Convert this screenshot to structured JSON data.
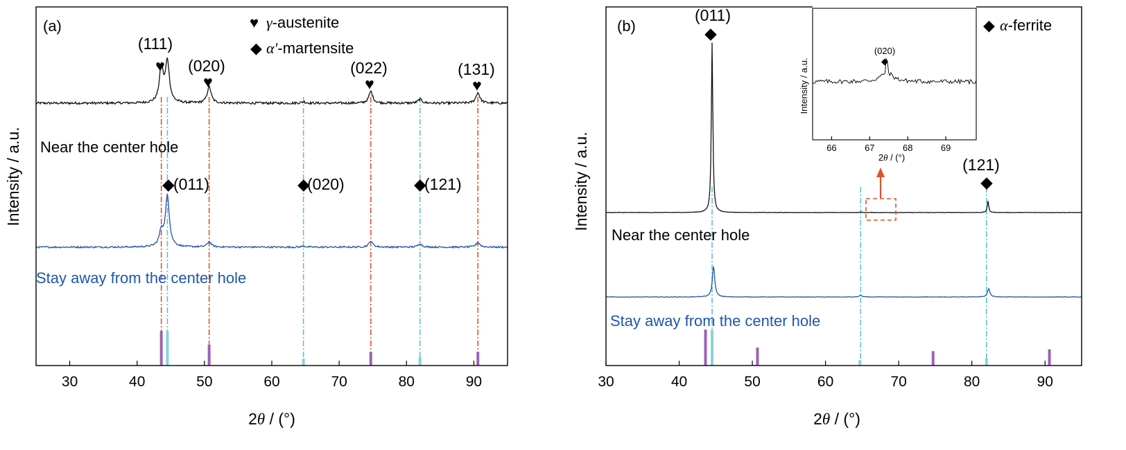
{
  "colors": {
    "trace_near": "#111111",
    "trace_away": "#1f56a8",
    "austenite_line": "#e0502a",
    "martensite_line": "#5cc0d0",
    "austenite_stick": "#9b63b8",
    "martensite_stick": "#86d4dc",
    "inset_box": "#e0502a",
    "sample_away_text": "#1f56a8",
    "sample_near_text": "#000000"
  },
  "icons": {
    "heart": "♥",
    "diamond": "◆"
  },
  "chart_data": [
    {
      "type": "line",
      "panel_label": "(a)",
      "xlabel": {
        "prefix": "2",
        "italic": "θ",
        "suffix": " / (°)"
      },
      "ylabel": "Intensity / a.u.",
      "xlim": [
        25,
        95
      ],
      "xticks": [
        30,
        40,
        50,
        60,
        70,
        80,
        90
      ],
      "legend": [
        {
          "symbol": "heart",
          "italic": "γ",
          "text": "-austenite"
        },
        {
          "symbol": "diamond",
          "italic": "α′",
          "text": "-martensite"
        }
      ],
      "series": [
        {
          "name": "Near the center hole",
          "color_key": "trace_near",
          "baseline": 0.0,
          "noise": 0.012,
          "peaks": [
            [
              43.6,
              0.36
            ],
            [
              44.5,
              0.42
            ],
            [
              50.7,
              0.17
            ],
            [
              64.7,
              0.015
            ],
            [
              74.7,
              0.12
            ],
            [
              82.0,
              0.04
            ],
            [
              90.6,
              0.11
            ]
          ]
        },
        {
          "name": "Stay away from the center hole",
          "color_key": "trace_away",
          "baseline": 0.0,
          "noise": 0.012,
          "peaks": [
            [
              43.6,
              0.22
            ],
            [
              44.5,
              0.75
            ],
            [
              50.7,
              0.08
            ],
            [
              64.7,
              0.015
            ],
            [
              74.7,
              0.09
            ],
            [
              82.0,
              0.05
            ],
            [
              90.6,
              0.07
            ]
          ]
        }
      ],
      "austenite_peaks": [
        {
          "x": 43.6,
          "label": "(111)"
        },
        {
          "x": 50.7,
          "label": "(020)"
        },
        {
          "x": 74.7,
          "label": "(022)"
        },
        {
          "x": 90.6,
          "label": "(131)"
        }
      ],
      "martensite_peaks": [
        {
          "x": 44.5,
          "label": "(011)"
        },
        {
          "x": 64.7,
          "label": "(020)"
        },
        {
          "x": 82.0,
          "label": "(121)"
        }
      ],
      "reference_sticks": [
        {
          "x": 43.6,
          "height": 1.0,
          "phase": "austenite"
        },
        {
          "x": 44.5,
          "height": 1.0,
          "phase": "martensite"
        },
        {
          "x": 50.7,
          "height": 0.6,
          "phase": "austenite"
        },
        {
          "x": 64.7,
          "height": 0.2,
          "phase": "martensite"
        },
        {
          "x": 74.7,
          "height": 0.4,
          "phase": "austenite"
        },
        {
          "x": 82.0,
          "height": 0.25,
          "phase": "martensite"
        },
        {
          "x": 90.6,
          "height": 0.4,
          "phase": "austenite"
        }
      ]
    },
    {
      "type": "line",
      "panel_label": "(b)",
      "xlabel": {
        "prefix": "2",
        "italic": "θ",
        "suffix": " / (°)"
      },
      "ylabel": "Intensity / a.u.",
      "xlim": [
        30,
        95
      ],
      "xticks": [
        30,
        40,
        50,
        60,
        70,
        80,
        90
      ],
      "legend": [
        {
          "symbol": "diamond",
          "italic": "α",
          "text": "-ferrite"
        }
      ],
      "series": [
        {
          "name": "Near the center hole",
          "color_key": "trace_near",
          "baseline": 0.0,
          "noise": 0.004,
          "peaks": [
            [
              44.5,
              3.0
            ],
            [
              64.8,
              0.01
            ],
            [
              82.2,
              0.2
            ]
          ]
        },
        {
          "name": "Stay away from the center hole",
          "color_key": "trace_away",
          "baseline": 0.0,
          "noise": 0.004,
          "peaks": [
            [
              44.7,
              0.5
            ],
            [
              64.8,
              0.03
            ],
            [
              82.3,
              0.14
            ]
          ]
        }
      ],
      "ferrite_peaks": [
        {
          "x": 44.5,
          "label": "(011)"
        },
        {
          "x": 82.2,
          "label": "(121)"
        }
      ],
      "guide_lines": [
        44.5,
        64.8,
        82.0
      ],
      "reference_sticks": [
        {
          "x": 43.6,
          "height": 1.0,
          "phase": "austenite"
        },
        {
          "x": 44.5,
          "height": 1.0,
          "phase": "martensite"
        },
        {
          "x": 50.7,
          "height": 0.5,
          "phase": "austenite"
        },
        {
          "x": 64.7,
          "height": 0.15,
          "phase": "martensite"
        },
        {
          "x": 74.7,
          "height": 0.4,
          "phase": "austenite"
        },
        {
          "x": 82.0,
          "height": 0.2,
          "phase": "martensite"
        },
        {
          "x": 90.6,
          "height": 0.45,
          "phase": "austenite"
        }
      ],
      "zoom_region": {
        "xlim": [
          66,
          69
        ]
      },
      "inset": {
        "type": "line",
        "xlabel": {
          "prefix": "2",
          "italic": "θ",
          "suffix": " / (°)"
        },
        "ylabel": "Intensity / a.u.",
        "xlim": [
          65.5,
          69.8
        ],
        "xticks": [
          66,
          67,
          68,
          69
        ],
        "peak": {
          "x": 67.45,
          "label": "(020)",
          "symbol": "diamond"
        },
        "noise": 0.08
      }
    }
  ]
}
